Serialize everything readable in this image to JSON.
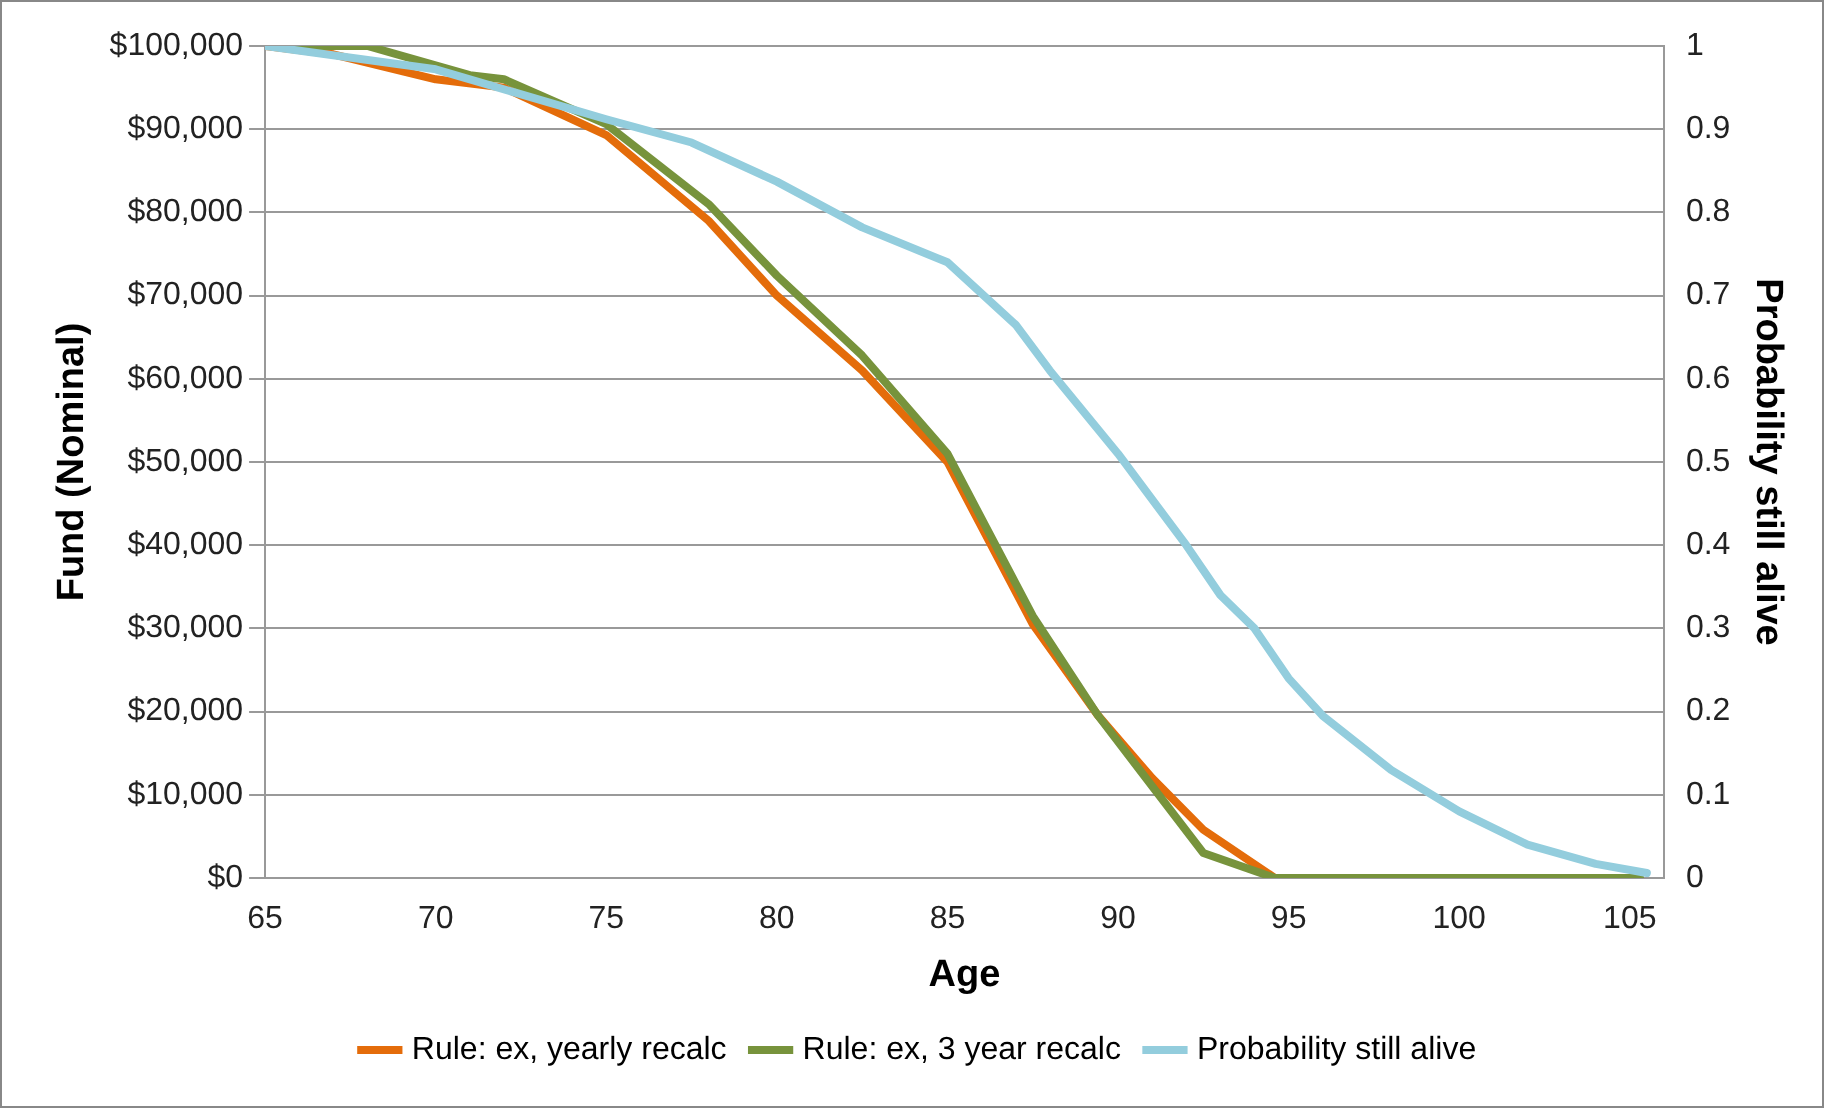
{
  "chart_data": {
    "type": "line",
    "xlabel": "Age",
    "ylabel": "Fund (Nominal)",
    "y2label": "Probability still alive",
    "xlim": [
      65,
      106
    ],
    "xticks": [
      65,
      70,
      75,
      80,
      85,
      90,
      95,
      100,
      105
    ],
    "ylim": [
      0,
      100000
    ],
    "yticks": [
      {
        "value": 0,
        "label": "$0"
      },
      {
        "value": 10000,
        "label": "$10,000"
      },
      {
        "value": 20000,
        "label": "$20,000"
      },
      {
        "value": 30000,
        "label": "$30,000"
      },
      {
        "value": 40000,
        "label": "$40,000"
      },
      {
        "value": 50000,
        "label": "$50,000"
      },
      {
        "value": 60000,
        "label": "$60,000"
      },
      {
        "value": 70000,
        "label": "$70,000"
      },
      {
        "value": 80000,
        "label": "$80,000"
      },
      {
        "value": 90000,
        "label": "$90,000"
      },
      {
        "value": 100000,
        "label": "$100,000"
      }
    ],
    "y2lim": [
      0,
      1
    ],
    "y2ticks": [
      0,
      0.1,
      0.2,
      0.3,
      0.4,
      0.5,
      0.6,
      0.7,
      0.8,
      0.9,
      1
    ],
    "grid": "y",
    "legend": "bottom",
    "marker": "none",
    "line_style": "solid",
    "series": [
      {
        "name": "Rule: ex, yearly recalc",
        "color": "#e46c0a",
        "x": [
          65,
          67,
          70,
          72,
          75,
          78,
          80,
          82.5,
          85,
          87.5,
          89.4,
          91,
          92.5,
          94.6
        ],
        "values": [
          100000,
          99000,
          96000,
          95000,
          89300,
          79000,
          70000,
          61000,
          50000,
          30500,
          19600,
          12000,
          5800,
          0
        ]
      },
      {
        "name": "Rule: ex, 3 year recalc",
        "color": "#77933c",
        "x": [
          65,
          68,
          71,
          72,
          75,
          78,
          80,
          82.5,
          85,
          87.5,
          89.4,
          92.5,
          94.6,
          96,
          100,
          105.3
        ],
        "values": [
          100000,
          100000,
          96500,
          96000,
          90600,
          81000,
          72400,
          62800,
          51000,
          31500,
          19600,
          3000,
          0,
          0,
          0,
          0
        ]
      },
      {
        "name": "Probability still alive",
        "color": "#93cddd",
        "axis": "y2",
        "x": [
          65,
          70,
          75,
          77.5,
          80,
          82.5,
          85,
          87,
          88,
          90,
          92,
          93,
          94,
          95,
          96,
          98,
          100,
          102,
          104,
          105.5
        ],
        "values": [
          1,
          0.972,
          0.912,
          0.884,
          0.837,
          0.782,
          0.74,
          0.665,
          0.61,
          0.51,
          0.4,
          0.34,
          0.3,
          0.24,
          0.195,
          0.13,
          0.08,
          0.04,
          0.017,
          0.006
        ]
      }
    ]
  }
}
